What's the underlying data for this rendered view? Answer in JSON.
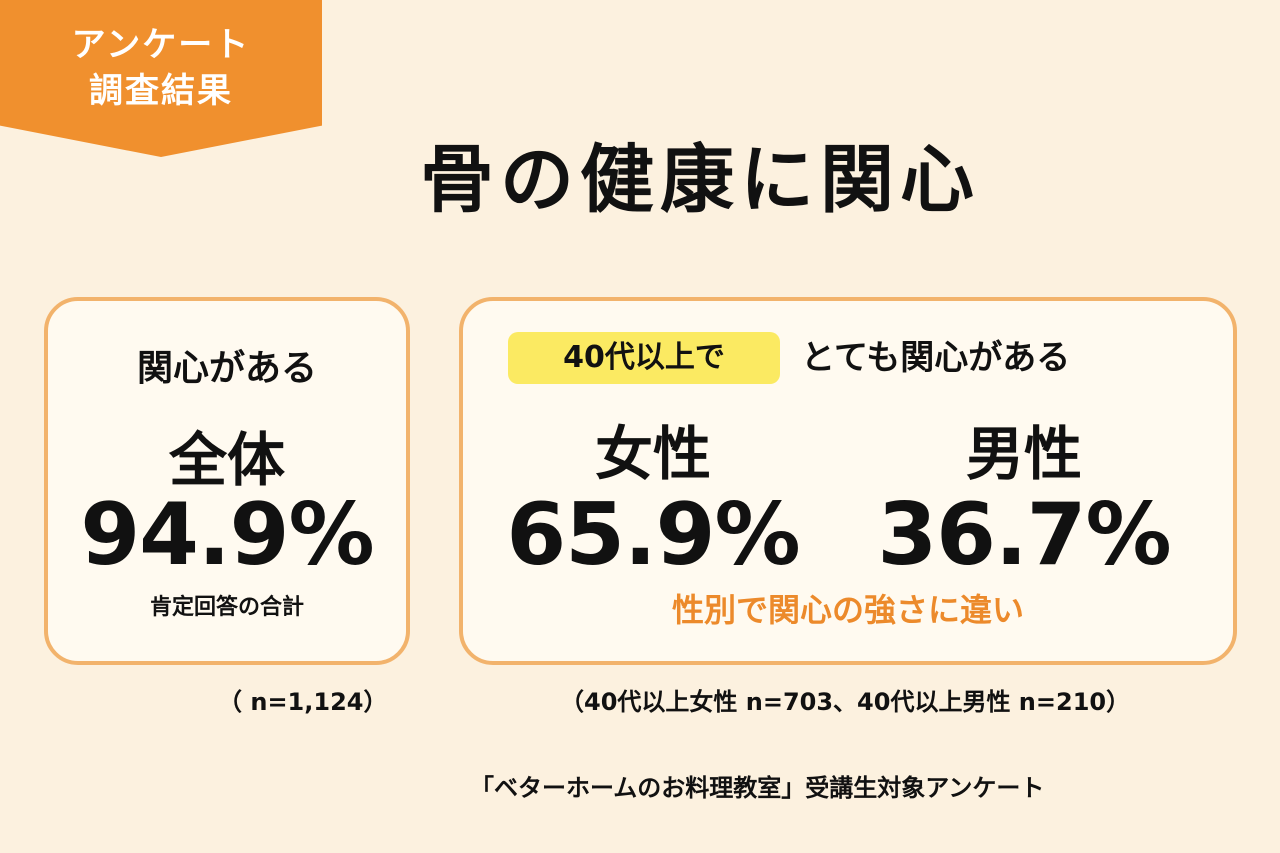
{
  "badge": {
    "line1": "アンケート",
    "line2": "調査結果",
    "color": "#f0902e"
  },
  "title": "骨の健康に関心",
  "overall": {
    "label": "関心がある",
    "group": "全体",
    "percent": "94.9%",
    "note": "肯定回答の合計",
    "sample": "（ n=1,124）"
  },
  "by_gender": {
    "highlight": "40代以上で",
    "heading": "とても関心がある",
    "female_label": "女性",
    "female_percent": "65.9%",
    "male_label": "男性",
    "male_percent": "36.7%",
    "note": "性別で関心の強さに違い",
    "sample": "（40代以上女性 n=703、40代以上男性 n=210）"
  },
  "source": "「ベターホームのお料理教室」受講生対象アンケート",
  "colors": {
    "background": "#fcf1df",
    "card_border": "#f2b36c",
    "highlight": "#fbea62",
    "accent_text": "#ec8a2b"
  }
}
